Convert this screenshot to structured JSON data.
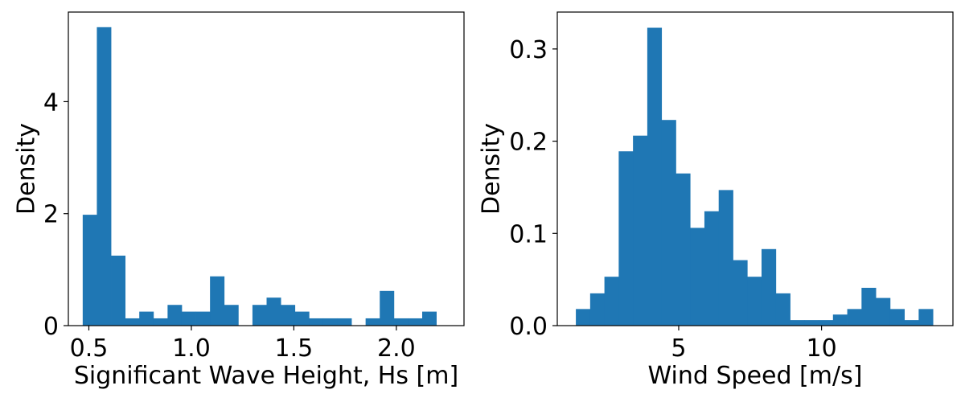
{
  "chart_data": [
    {
      "type": "bar",
      "subtype": "histogram",
      "xlabel": "Significant Wave Height, Hs [m]",
      "ylabel": "Density",
      "xlim": [
        0.4,
        2.33
      ],
      "ylim": [
        0,
        5.6
      ],
      "xticks": [
        0.5,
        1.0,
        1.5,
        2.0
      ],
      "xtick_labels": [
        "0.5",
        "1.0",
        "1.5",
        "2.0"
      ],
      "yticks": [
        0,
        2,
        4
      ],
      "ytick_labels": [
        "0",
        "2",
        "4"
      ],
      "bar_color": "#1f77b4",
      "bin_edges": [
        0.47,
        0.539,
        0.608,
        0.677,
        0.746,
        0.815,
        0.884,
        0.953,
        1.022,
        1.091,
        1.16,
        1.229,
        1.298,
        1.367,
        1.436,
        1.505,
        1.574,
        1.643,
        1.712,
        1.781,
        1.85,
        1.919,
        1.988,
        2.057,
        2.126,
        2.195
      ],
      "values": [
        1.98,
        5.33,
        1.25,
        0.13,
        0.25,
        0.13,
        0.37,
        0.25,
        0.25,
        0.88,
        0.37,
        0,
        0.37,
        0.5,
        0.37,
        0.25,
        0.13,
        0.13,
        0.13,
        0,
        0.13,
        0.62,
        0.13,
        0.13,
        0.25
      ]
    },
    {
      "type": "bar",
      "subtype": "histogram",
      "xlabel": "Wind Speed [m/s]",
      "ylabel": "Density",
      "xlim": [
        0.75,
        14.6
      ],
      "ylim": [
        0,
        0.34
      ],
      "xticks": [
        5,
        10
      ],
      "xtick_labels": [
        "5",
        "10"
      ],
      "yticks": [
        0.0,
        0.1,
        0.2,
        0.3
      ],
      "ytick_labels": [
        "0.0",
        "0.1",
        "0.2",
        "0.3"
      ],
      "bar_color": "#1f77b4",
      "bin_edges": [
        1.4,
        1.9,
        2.4,
        2.9,
        3.4,
        3.9,
        4.4,
        4.9,
        5.4,
        5.9,
        6.4,
        6.9,
        7.4,
        7.9,
        8.4,
        8.9,
        9.4,
        9.9,
        10.4,
        10.9,
        11.4,
        11.9,
        12.4,
        12.9,
        13.4,
        13.9
      ],
      "values": [
        0.018,
        0.035,
        0.053,
        0.189,
        0.206,
        0.323,
        0.223,
        0.165,
        0.106,
        0.124,
        0.147,
        0.071,
        0.053,
        0.083,
        0.035,
        0.006,
        0.006,
        0.006,
        0.012,
        0.018,
        0.041,
        0.03,
        0.018,
        0.006,
        0.018
      ]
    }
  ]
}
